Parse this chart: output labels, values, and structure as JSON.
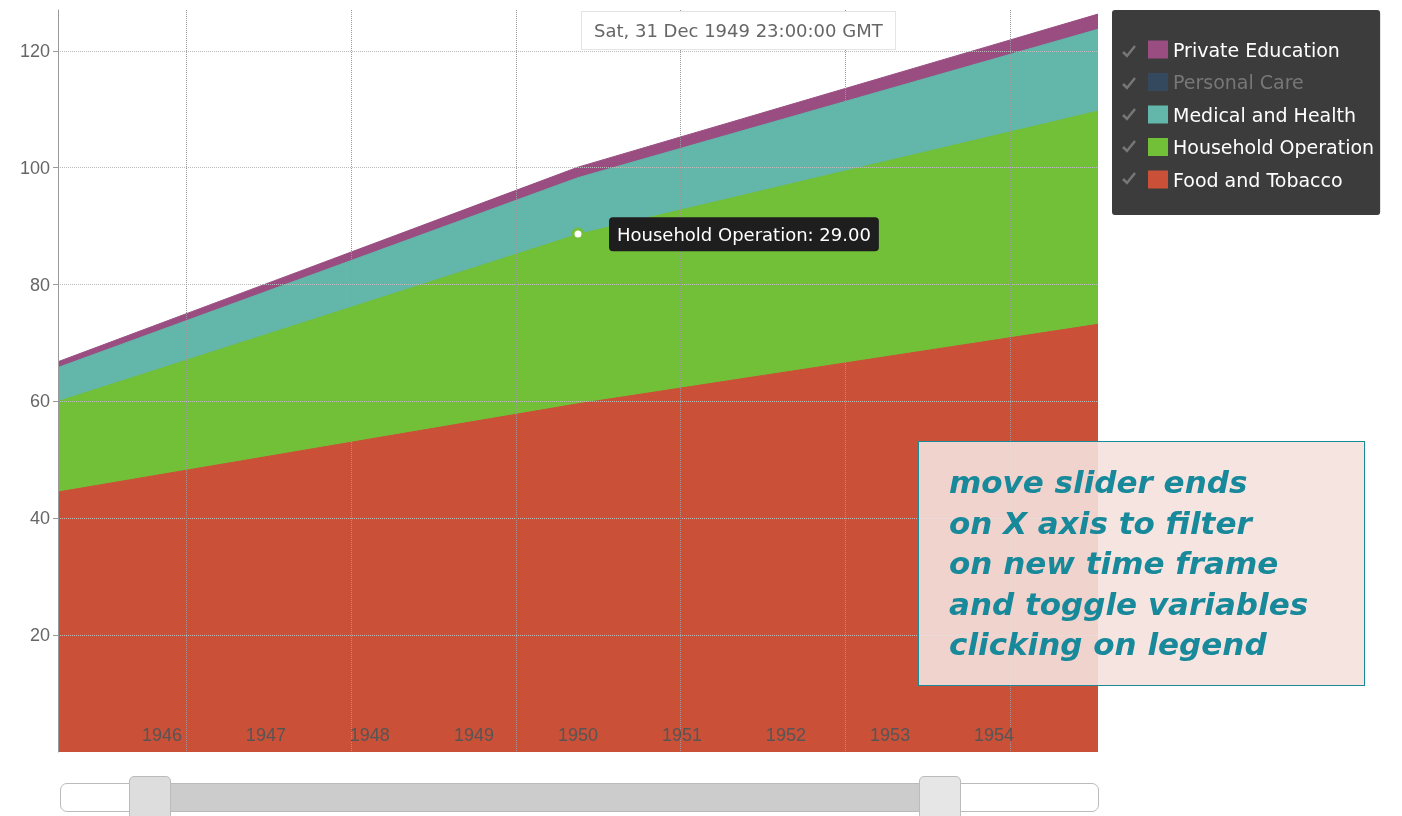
{
  "chart_data": {
    "type": "area",
    "stacked": true,
    "x": [
      "1945",
      "1950",
      "1955"
    ],
    "series": [
      {
        "name": "Food and Tobacco",
        "color": "#cb5038",
        "values": [
          44.5,
          59.6,
          73.2
        ]
      },
      {
        "name": "Household Operation",
        "color": "#72bf38",
        "values": [
          15.5,
          29.0,
          36.5
        ]
      },
      {
        "name": "Medical and Health",
        "color": "#62b6aa",
        "values": [
          5.8,
          9.7,
          14.0
        ]
      },
      {
        "name": "Personal Care",
        "color": "#34495e",
        "values": [
          null,
          null,
          null
        ]
      },
      {
        "name": "Private Education",
        "color": "#994d80",
        "values": [
          1.0,
          1.8,
          2.6
        ]
      }
    ],
    "xlim": [
      "1945",
      "1955"
    ],
    "xticks": [
      "1946",
      "1947",
      "1948",
      "1949",
      "1950",
      "1951",
      "1952",
      "1953",
      "1954"
    ],
    "ylim": [
      0,
      127
    ],
    "yticks": [
      20,
      40,
      60,
      80,
      100,
      120
    ],
    "grid": true,
    "legend": "top right",
    "annotations": [
      "Sat, 31 Dec 1949 23:00:00 GMT",
      {
        "text": "Household Operation: 29.00",
        "x": "1950",
        "y": 88.6
      },
      "move slider ends\non X axis to filter\non new time frame\nand toggle variables\nclicking on legend"
    ]
  }
}
